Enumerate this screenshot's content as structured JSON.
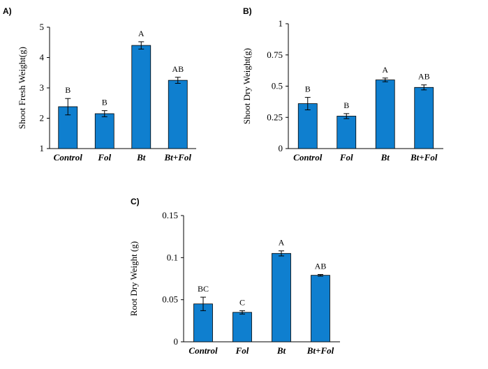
{
  "chart_data": [
    {
      "type": "bar",
      "panel": "A)",
      "categories": [
        "Control",
        "Fol",
        "Bt",
        "Bt+Fol"
      ],
      "values": [
        2.38,
        2.15,
        4.4,
        3.25
      ],
      "errors": [
        0.27,
        0.1,
        0.12,
        0.1
      ],
      "significance": [
        "B",
        "B",
        "A",
        "AB"
      ],
      "ylabel": "Shoot Fresh Weight(g)",
      "ylim": [
        1,
        5
      ],
      "yticks": [
        "1",
        "2",
        "3",
        "4",
        "5"
      ],
      "bar_color": "#0f7fcf"
    },
    {
      "type": "bar",
      "panel": "B)",
      "categories": [
        "Control",
        "Fol",
        "Bt",
        "Bt+Fol"
      ],
      "values": [
        0.36,
        0.26,
        0.55,
        0.49
      ],
      "errors": [
        0.05,
        0.02,
        0.015,
        0.02
      ],
      "significance": [
        "B",
        "B",
        "A",
        "AB"
      ],
      "ylabel": "Shoot Dry Weight(g)",
      "ylim": [
        0,
        1
      ],
      "yticks": [
        "0",
        "0.25",
        "0.5",
        "0.75",
        "1"
      ],
      "bar_color": "#0f7fcf"
    },
    {
      "type": "bar",
      "panel": "C)",
      "categories": [
        "Control",
        "Fol",
        "Bt",
        "Bt+Fol"
      ],
      "values": [
        0.045,
        0.035,
        0.105,
        0.079
      ],
      "errors": [
        0.008,
        0.002,
        0.003,
        0.001
      ],
      "significance": [
        "BC",
        "C",
        "A",
        "AB"
      ],
      "ylabel": "Root Dry Weight (g)",
      "ylim": [
        0,
        0.15
      ],
      "yticks": [
        "0",
        "0.05",
        "0.1",
        "0.15"
      ],
      "bar_color": "#0f7fcf"
    }
  ]
}
